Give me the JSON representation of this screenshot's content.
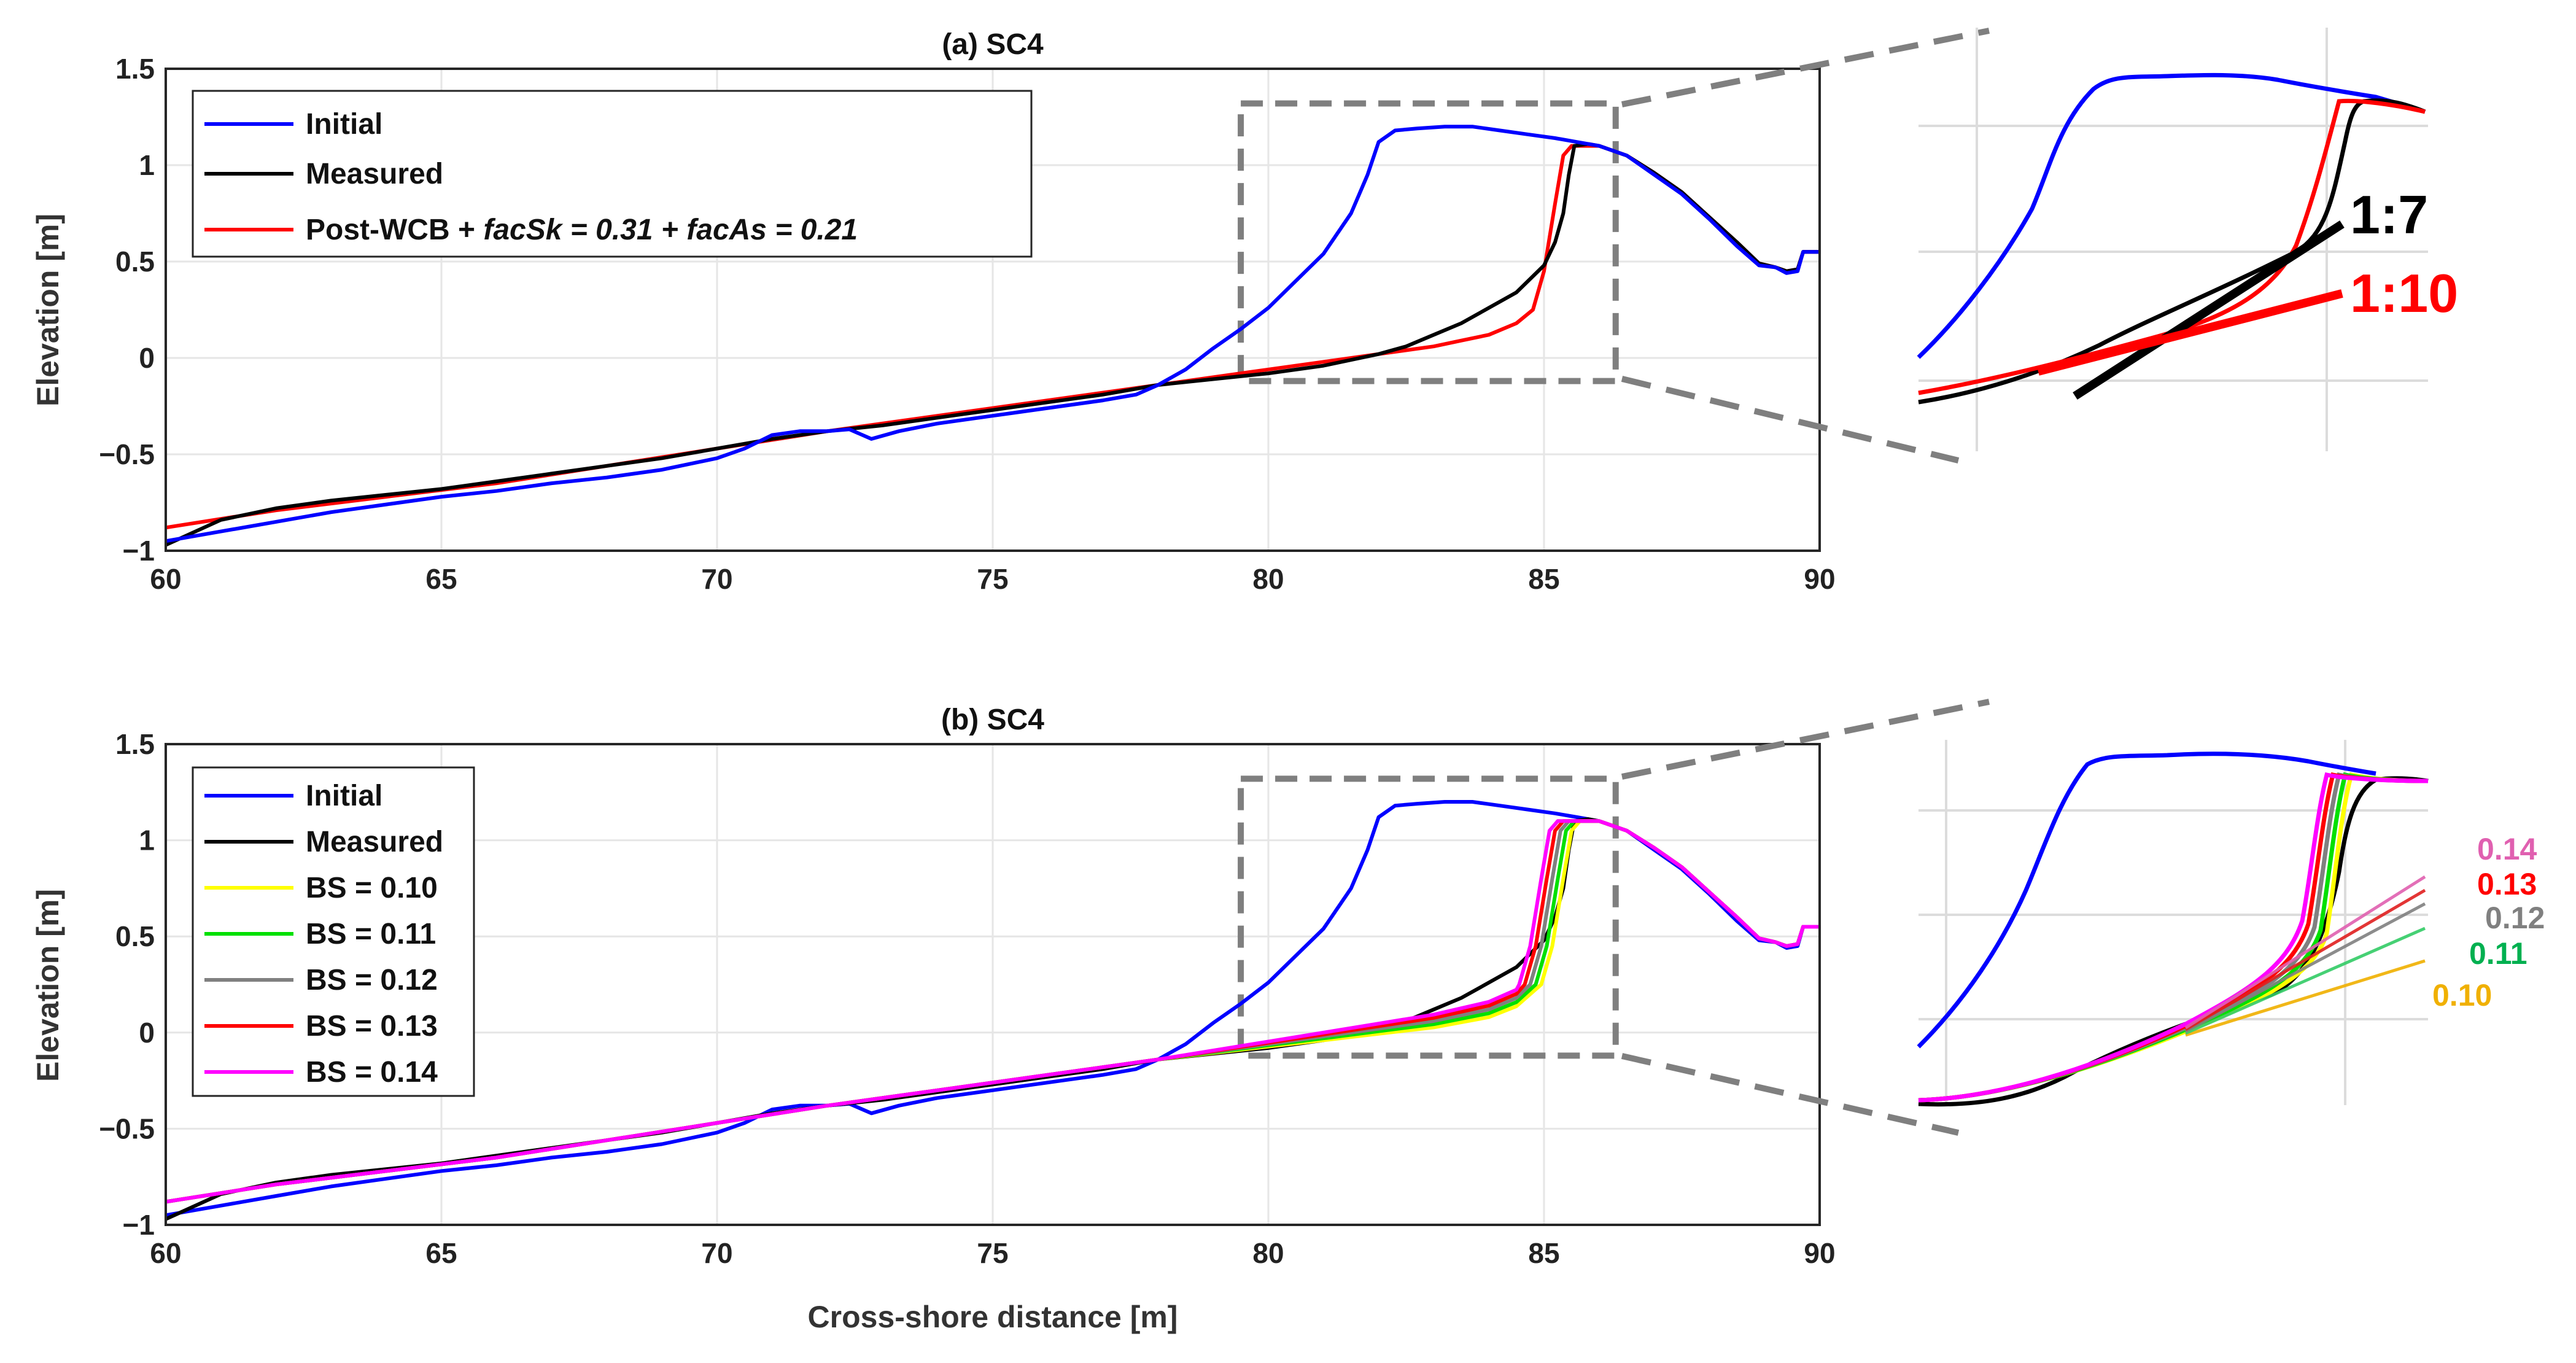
{
  "chart_data": [
    {
      "type": "line",
      "title": "(a) SC4",
      "xlabel": "",
      "ylabel": "Elevation [m]",
      "xlim": [
        60,
        90
      ],
      "ylim": [
        -1,
        1.5
      ],
      "xticks": [
        "60",
        "65",
        "70",
        "75",
        "80",
        "85",
        "90"
      ],
      "yticks": [
        "-1",
        "-0.5",
        "0",
        "0.5",
        "1",
        "1.5"
      ],
      "grid": true,
      "legend_position": "top-left",
      "legend": {
        "initial": "Initial",
        "measured": "Measured",
        "model_prefix": "Post-WCB + ",
        "model_k1": "facSk",
        "model_v1": " = 0.31 + ",
        "model_k2": "facAs",
        "model_v2": " = 0.21"
      },
      "series": [
        {
          "name": "Initial",
          "color": "#0000ff",
          "points": [
            [
              60,
              -0.95
            ],
            [
              61,
              -0.9
            ],
            [
              62,
              -0.85
            ],
            [
              63,
              -0.8
            ],
            [
              64,
              -0.76
            ],
            [
              65,
              -0.72
            ],
            [
              66,
              -0.69
            ],
            [
              67,
              -0.65
            ],
            [
              68,
              -0.62
            ],
            [
              69,
              -0.58
            ],
            [
              70,
              -0.52
            ],
            [
              70.5,
              -0.47
            ],
            [
              71,
              -0.4
            ],
            [
              71.5,
              -0.38
            ],
            [
              72,
              -0.38
            ],
            [
              72.4,
              -0.37
            ],
            [
              72.8,
              -0.42
            ],
            [
              73.3,
              -0.38
            ],
            [
              74,
              -0.34
            ],
            [
              75,
              -0.3
            ],
            [
              76,
              -0.26
            ],
            [
              77,
              -0.22
            ],
            [
              77.6,
              -0.19
            ],
            [
              78,
              -0.14
            ],
            [
              78.5,
              -0.06
            ],
            [
              79,
              0.05
            ],
            [
              79.5,
              0.15
            ],
            [
              80,
              0.26
            ],
            [
              80.5,
              0.4
            ],
            [
              81,
              0.54
            ],
            [
              81.5,
              0.75
            ],
            [
              81.8,
              0.95
            ],
            [
              82,
              1.12
            ],
            [
              82.3,
              1.18
            ],
            [
              82.7,
              1.19
            ],
            [
              83.2,
              1.2
            ],
            [
              83.7,
              1.2
            ],
            [
              84.2,
              1.18
            ],
            [
              84.7,
              1.16
            ],
            [
              85.2,
              1.14
            ],
            [
              85.6,
              1.12
            ],
            [
              86,
              1.1
            ],
            [
              86.5,
              1.05
            ],
            [
              87,
              0.95
            ],
            [
              87.5,
              0.85
            ],
            [
              88,
              0.72
            ],
            [
              88.5,
              0.58
            ],
            [
              88.9,
              0.48
            ],
            [
              89.2,
              0.47
            ],
            [
              89.4,
              0.44
            ],
            [
              89.6,
              0.45
            ],
            [
              89.7,
              0.55
            ],
            [
              90,
              0.55
            ]
          ]
        },
        {
          "name": "Measured",
          "color": "#000000",
          "points": [
            [
              60,
              -0.97
            ],
            [
              61,
              -0.84
            ],
            [
              62,
              -0.78
            ],
            [
              63,
              -0.74
            ],
            [
              64,
              -0.71
            ],
            [
              65,
              -0.68
            ],
            [
              66,
              -0.64
            ],
            [
              67,
              -0.6
            ],
            [
              68,
              -0.56
            ],
            [
              69,
              -0.52
            ],
            [
              70,
              -0.47
            ],
            [
              71,
              -0.42
            ],
            [
              72,
              -0.38
            ],
            [
              73,
              -0.35
            ],
            [
              74,
              -0.31
            ],
            [
              75,
              -0.27
            ],
            [
              76,
              -0.23
            ],
            [
              77,
              -0.19
            ],
            [
              78,
              -0.14
            ],
            [
              79,
              -0.11
            ],
            [
              80,
              -0.08
            ],
            [
              81,
              -0.04
            ],
            [
              82,
              0.02
            ],
            [
              82.5,
              0.06
            ],
            [
              83,
              0.12
            ],
            [
              83.5,
              0.18
            ],
            [
              84,
              0.26
            ],
            [
              84.5,
              0.34
            ],
            [
              85,
              0.48
            ],
            [
              85.2,
              0.6
            ],
            [
              85.35,
              0.75
            ],
            [
              85.45,
              0.95
            ],
            [
              85.55,
              1.1
            ],
            [
              85.8,
              1.11
            ],
            [
              86,
              1.1
            ],
            [
              86.5,
              1.05
            ],
            [
              87,
              0.96
            ],
            [
              87.5,
              0.86
            ],
            [
              88,
              0.73
            ],
            [
              88.5,
              0.6
            ],
            [
              88.9,
              0.49
            ],
            [
              89.2,
              0.47
            ],
            [
              89.4,
              0.45
            ],
            [
              89.6,
              0.46
            ],
            [
              89.7,
              0.55
            ],
            [
              90,
              0.55
            ]
          ]
        },
        {
          "name": "Post-WCB + facSk = 0.31 + facAs = 0.21",
          "color": "#ff0000",
          "points": [
            [
              60,
              -0.88
            ],
            [
              62,
              -0.79
            ],
            [
              64,
              -0.72
            ],
            [
              66,
              -0.65
            ],
            [
              68,
              -0.56
            ],
            [
              70,
              -0.47
            ],
            [
              72,
              -0.38
            ],
            [
              74,
              -0.3
            ],
            [
              76,
              -0.22
            ],
            [
              78,
              -0.14
            ],
            [
              80,
              -0.06
            ],
            [
              81,
              -0.02
            ],
            [
              82,
              0.02
            ],
            [
              83,
              0.06
            ],
            [
              83.5,
              0.09
            ],
            [
              84,
              0.12
            ],
            [
              84.5,
              0.18
            ],
            [
              84.8,
              0.25
            ],
            [
              85,
              0.45
            ],
            [
              85.2,
              0.8
            ],
            [
              85.35,
              1.05
            ],
            [
              85.5,
              1.1
            ],
            [
              86,
              1.1
            ],
            [
              86.5,
              1.05
            ],
            [
              87,
              0.96
            ],
            [
              87.5,
              0.86
            ],
            [
              88,
              0.73
            ],
            [
              88.5,
              0.6
            ],
            [
              88.9,
              0.49
            ],
            [
              89.2,
              0.47
            ],
            [
              89.4,
              0.45
            ],
            [
              89.6,
              0.46
            ],
            [
              89.7,
              0.55
            ],
            [
              90,
              0.55
            ]
          ]
        }
      ],
      "inset": {
        "zoom_box_x": [
          79.5,
          86.3
        ],
        "zoom_box_y": [
          -0.12,
          1.32
        ],
        "slope_labels": [
          {
            "text": "1:7",
            "color": "#000000"
          },
          {
            "text": "1:10",
            "color": "#ff0000"
          }
        ]
      }
    },
    {
      "type": "line",
      "title": "(b) SC4",
      "xlabel": "Cross-shore distance [m]",
      "ylabel": "Elevation [m]",
      "xlim": [
        60,
        90
      ],
      "ylim": [
        -1,
        1.5
      ],
      "xticks": [
        "60",
        "65",
        "70",
        "75",
        "80",
        "85",
        "90"
      ],
      "yticks": [
        "-1",
        "-0.5",
        "0",
        "0.5",
        "1",
        "1.5"
      ],
      "grid": true,
      "legend_position": "top-left",
      "series": [
        {
          "name": "Initial",
          "color": "#0000ff"
        },
        {
          "name": "Measured",
          "color": "#000000"
        },
        {
          "name": "BS = 0.10",
          "color": "#ffff00",
          "crest_x": 85.5
        },
        {
          "name": "BS = 0.11",
          "color": "#00e000",
          "crest_x": 85.4
        },
        {
          "name": "BS = 0.12",
          "color": "#808080",
          "crest_x": 85.3
        },
        {
          "name": "BS = 0.13",
          "color": "#ff0000",
          "crest_x": 85.2
        },
        {
          "name": "BS = 0.14",
          "color": "#ff00ff",
          "crest_x": 85.1
        }
      ],
      "inset": {
        "zoom_box_x": [
          79.5,
          86.3
        ],
        "zoom_box_y": [
          -0.12,
          1.32
        ],
        "slope_labels": [
          {
            "text": "0.14",
            "color": "#e060b0"
          },
          {
            "text": "0.13",
            "color": "#ff0000"
          },
          {
            "text": "0.12",
            "color": "#808080"
          },
          {
            "text": "0.11",
            "color": "#00b050"
          },
          {
            "text": "0.10",
            "color": "#f0b000"
          }
        ]
      }
    }
  ]
}
